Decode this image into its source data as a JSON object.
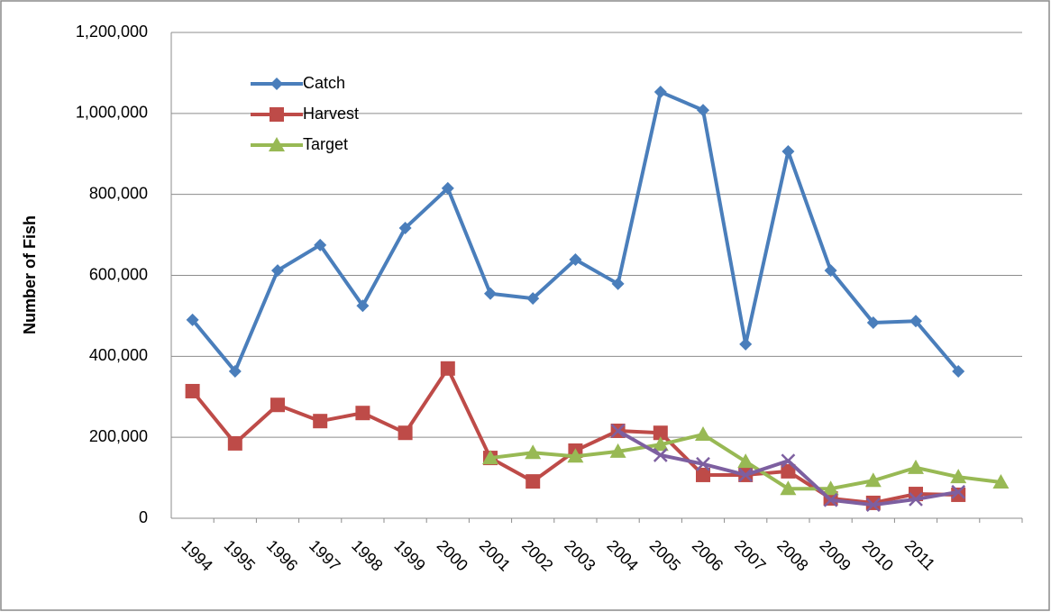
{
  "chart_data": {
    "type": "line",
    "y_label": "Number of Fish",
    "categories": [
      "1994",
      "1995",
      "1996",
      "1997",
      "1998",
      "1999",
      "2000",
      "2001",
      "2002",
      "2003",
      "2004",
      "2005",
      "2006",
      "2007",
      "2008",
      "2009",
      "2010",
      "2011",
      null,
      null
    ],
    "series": [
      {
        "name": "Catch",
        "color": "#4a7ebb",
        "marker": "diamond",
        "values": [
          490000,
          363000,
          612000,
          675000,
          525000,
          717000,
          815000,
          555000,
          543000,
          639000,
          579000,
          1053000,
          1008000,
          430000,
          906000,
          612000,
          483000,
          487000,
          363000,
          null
        ]
      },
      {
        "name": "Harvest",
        "color": "#be4b48",
        "marker": "square",
        "values": [
          314000,
          185000,
          280000,
          240000,
          260000,
          211000,
          370000,
          149000,
          91000,
          167000,
          216000,
          211000,
          107000,
          107000,
          116000,
          49000,
          38000,
          60000,
          58000,
          null
        ]
      },
      {
        "name": "Target",
        "color": "#98b954",
        "marker": "triangle",
        "values": [
          null,
          null,
          null,
          null,
          null,
          null,
          null,
          149000,
          162000,
          153000,
          165000,
          182000,
          207000,
          140000,
          73000,
          73000,
          93000,
          125000,
          102000,
          89000
        ]
      },
      {
        "color": "#7d5fa0",
        "marker": "x",
        "values": [
          null,
          null,
          null,
          null,
          null,
          null,
          null,
          null,
          null,
          null,
          216000,
          156000,
          134000,
          107000,
          142000,
          45000,
          33000,
          47000,
          65000,
          null
        ]
      }
    ],
    "ylim": [
      0,
      1200000
    ],
    "yticks": [
      0,
      {
        "value": 200000,
        "label": "200,000"
      },
      {
        "value": 400000,
        "label": "400,000"
      },
      {
        "value": 600000,
        "label": "600,000"
      },
      {
        "value": 800000,
        "label": "800,000"
      },
      {
        "value": 1000000,
        "label": "1,000,000"
      },
      {
        "value": 1200000,
        "label": "1,200,000"
      }
    ],
    "grid": true,
    "legend": "upper left"
  }
}
